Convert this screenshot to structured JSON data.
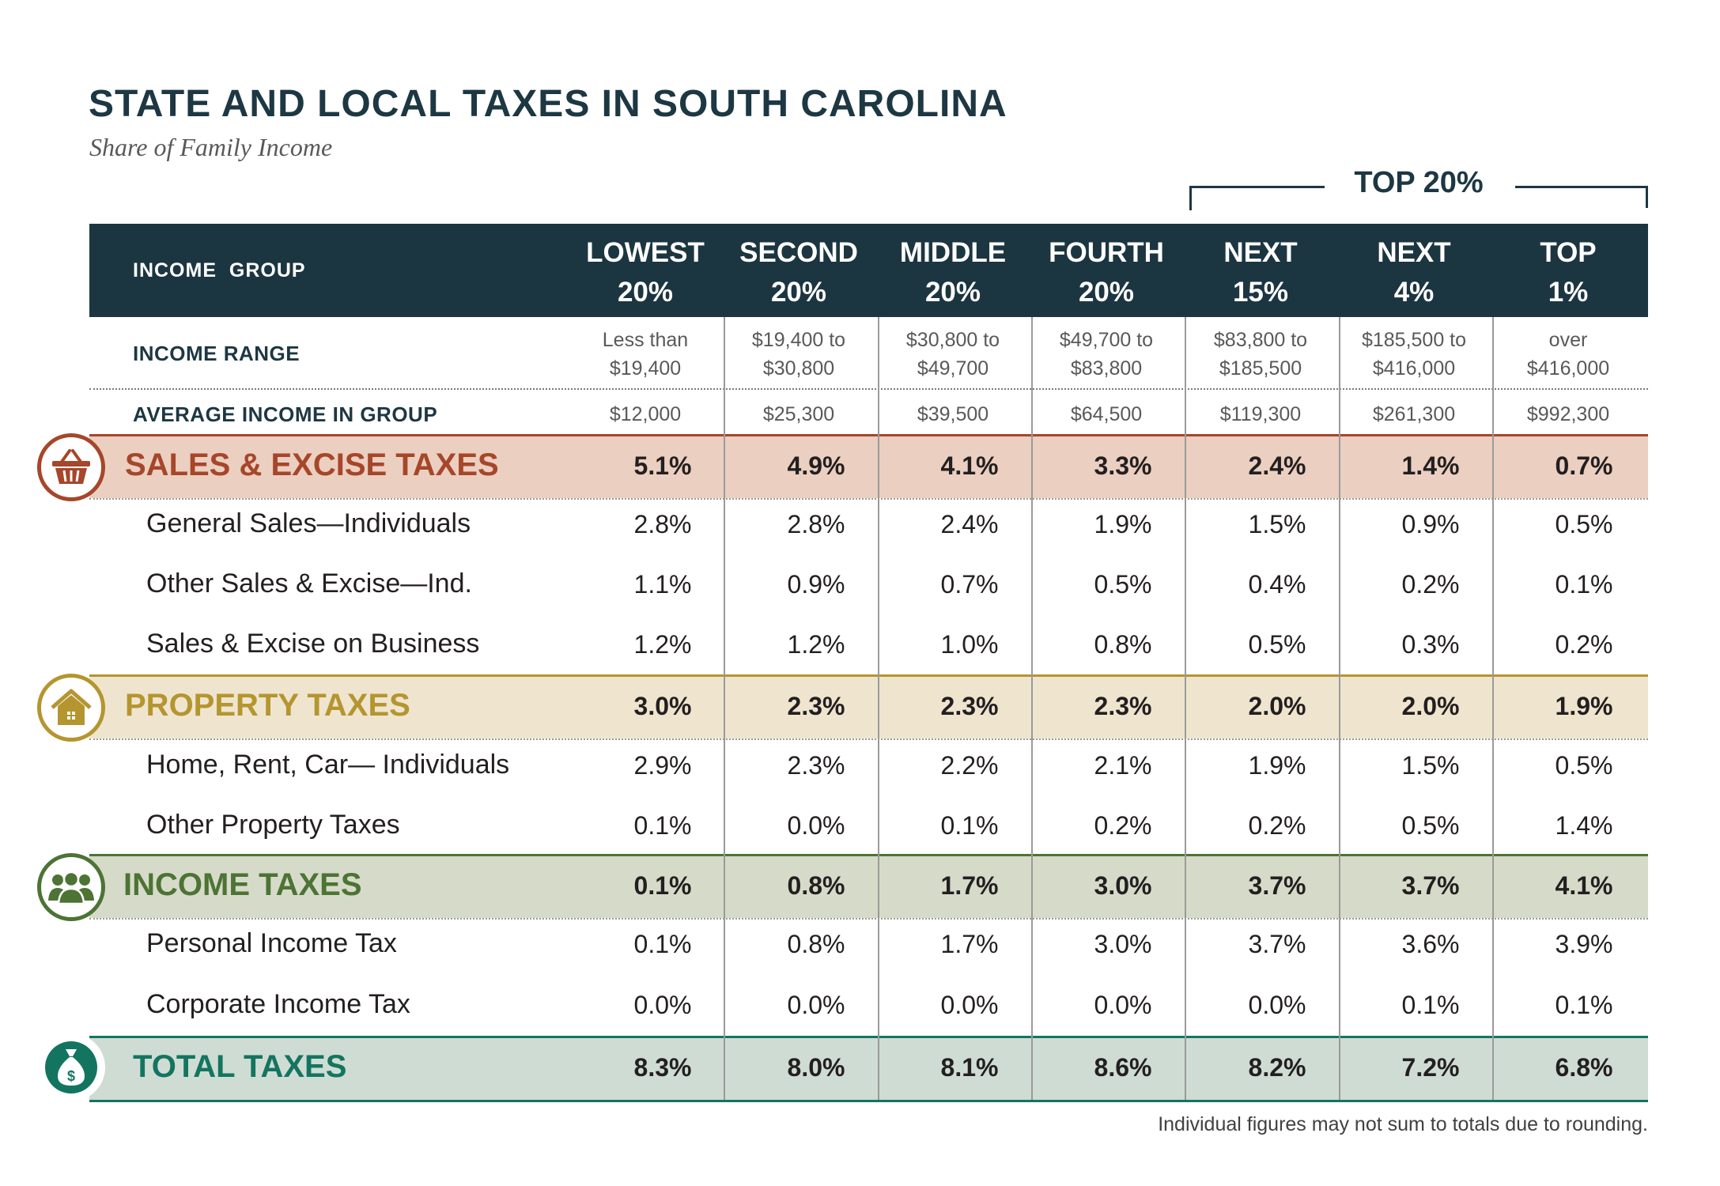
{
  "title": "STATE AND LOCAL TAXES IN SOUTH CAROLINA",
  "subtitle": "Share of Family Income",
  "top_group_label": "TOP 20%",
  "header": {
    "row_label": "INCOME  GROUP",
    "columns": [
      {
        "line1": "LOWEST",
        "line2": "20%"
      },
      {
        "line1": "SECOND",
        "line2": "20%"
      },
      {
        "line1": "MIDDLE",
        "line2": "20%"
      },
      {
        "line1": "FOURTH",
        "line2": "20%"
      },
      {
        "line1": "NEXT",
        "line2": "15%"
      },
      {
        "line1": "NEXT",
        "line2": "4%"
      },
      {
        "line1": "TOP",
        "line2": "1%"
      }
    ]
  },
  "income_range": {
    "label": "INCOME RANGE",
    "values": [
      {
        "line1": "Less than",
        "line2": "$19,400"
      },
      {
        "line1": "$19,400 to",
        "line2": "$30,800"
      },
      {
        "line1": "$30,800 to",
        "line2": "$49,700"
      },
      {
        "line1": "$49,700 to",
        "line2": "$83,800"
      },
      {
        "line1": "$83,800 to",
        "line2": "$185,500"
      },
      {
        "line1": "$185,500 to",
        "line2": "$416,000"
      },
      {
        "line1": "over",
        "line2": "$416,000"
      }
    ]
  },
  "average_income": {
    "label": "AVERAGE INCOME IN GROUP",
    "values": [
      "$12,000",
      "$25,300",
      "$39,500",
      "$64,500",
      "$119,300",
      "$261,300",
      "$992,300"
    ]
  },
  "colors": {
    "header": "#1c3641",
    "sales": "#a6462a",
    "sales_band": "#ebcfc1",
    "property": "#b5952f",
    "property_band": "#efe5cf",
    "income": "#4d7335",
    "income_band": "#d6dbc9",
    "total": "#137560",
    "total_band": "#cfdcd4"
  },
  "chart_data": {
    "type": "table",
    "title": "STATE AND LOCAL TAXES IN SOUTH CAROLINA",
    "subtitle": "Share of Family Income",
    "columns": [
      "LOWEST 20%",
      "SECOND 20%",
      "MIDDLE 20%",
      "FOURTH 20%",
      "NEXT 15%",
      "NEXT 4%",
      "TOP 1%"
    ],
    "categories": [
      {
        "name": "SALES & EXCISE TAXES",
        "icon": "basket-icon",
        "total": [
          "5.1%",
          "4.9%",
          "4.1%",
          "3.3%",
          "2.4%",
          "1.4%",
          "0.7%"
        ],
        "items": [
          {
            "name": "General Sales—Individuals",
            "values": [
              "2.8%",
              "2.8%",
              "2.4%",
              "1.9%",
              "1.5%",
              "0.9%",
              "0.5%"
            ]
          },
          {
            "name": "Other Sales & Excise—Ind.",
            "values": [
              "1.1%",
              "0.9%",
              "0.7%",
              "0.5%",
              "0.4%",
              "0.2%",
              "0.1%"
            ]
          },
          {
            "name": "Sales & Excise on Business",
            "values": [
              "1.2%",
              "1.2%",
              "1.0%",
              "0.8%",
              "0.5%",
              "0.3%",
              "0.2%"
            ]
          }
        ]
      },
      {
        "name": "PROPERTY TAXES",
        "icon": "house-icon",
        "total": [
          "3.0%",
          "2.3%",
          "2.3%",
          "2.3%",
          "2.0%",
          "2.0%",
          "1.9%"
        ],
        "items": [
          {
            "name": "Home, Rent, Car— Individuals",
            "values": [
              "2.9%",
              "2.3%",
              "2.2%",
              "2.1%",
              "1.9%",
              "1.5%",
              "0.5%"
            ]
          },
          {
            "name": "Other Property Taxes",
            "values": [
              "0.1%",
              "0.0%",
              "0.1%",
              "0.2%",
              "0.2%",
              "0.5%",
              "1.4%"
            ]
          }
        ]
      },
      {
        "name": "INCOME TAXES",
        "icon": "people-icon",
        "total": [
          "0.1%",
          "0.8%",
          "1.7%",
          "3.0%",
          "3.7%",
          "3.7%",
          "4.1%"
        ],
        "items": [
          {
            "name": "Personal Income Tax",
            "values": [
              "0.1%",
              "0.8%",
              "1.7%",
              "3.0%",
              "3.7%",
              "3.6%",
              "3.9%"
            ]
          },
          {
            "name": "Corporate Income Tax",
            "values": [
              "0.0%",
              "0.0%",
              "0.0%",
              "0.0%",
              "0.0%",
              "0.1%",
              "0.1%"
            ]
          }
        ]
      }
    ],
    "total": {
      "name": "TOTAL TAXES",
      "icon": "money-bag-icon",
      "values": [
        "8.3%",
        "8.0%",
        "8.1%",
        "8.6%",
        "8.2%",
        "7.2%",
        "6.8%"
      ]
    }
  },
  "footnote": "Individual figures may not sum to totals due to rounding."
}
